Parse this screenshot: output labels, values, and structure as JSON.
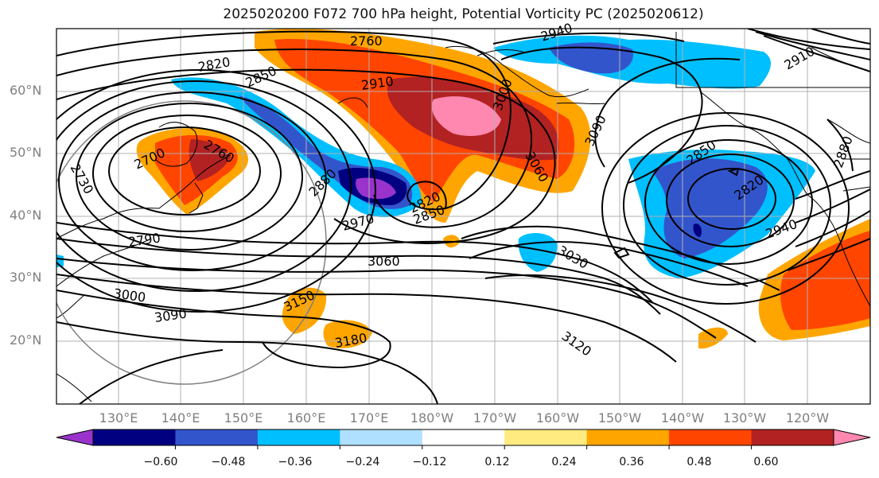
{
  "title": "2025020200 F072 700 hPa height, Potential Vorticity PC (2025020612)",
  "lat_labels": [
    "60°N",
    "50°N",
    "40°N",
    "30°N",
    "20°N"
  ],
  "lon_labels": [
    "130°E",
    "140°E",
    "150°E",
    "160°E",
    "170°E",
    "180°W",
    "170°W",
    "160°W",
    "150°W",
    "140°W",
    "130°W",
    "120°W"
  ],
  "colorbar": {
    "colors": [
      "#9933cc",
      "#000080",
      "#3355cc",
      "#00bfff",
      "#b0e0ff",
      "#ffffff",
      "#ffeb80",
      "#ffa500",
      "#ff4500",
      "#b22222",
      "#ff88b0"
    ],
    "tick_labels": [
      "−0.60",
      "−0.48",
      "−0.36",
      "−0.24",
      "−0.12",
      "0.12",
      "0.24",
      "0.36",
      "0.48",
      "0.60"
    ]
  },
  "contour_labels": [
    "2760",
    "2940",
    "2820",
    "2850",
    "2910",
    "3000",
    "2760",
    "2700",
    "2730",
    "2880",
    "2970",
    "2820",
    "2850",
    "3060",
    "3090",
    "2790",
    "3060",
    "3030",
    "3000",
    "3090",
    "3150",
    "3180",
    "3120",
    "2850",
    "2820",
    "2940",
    "2880",
    "2910"
  ]
}
